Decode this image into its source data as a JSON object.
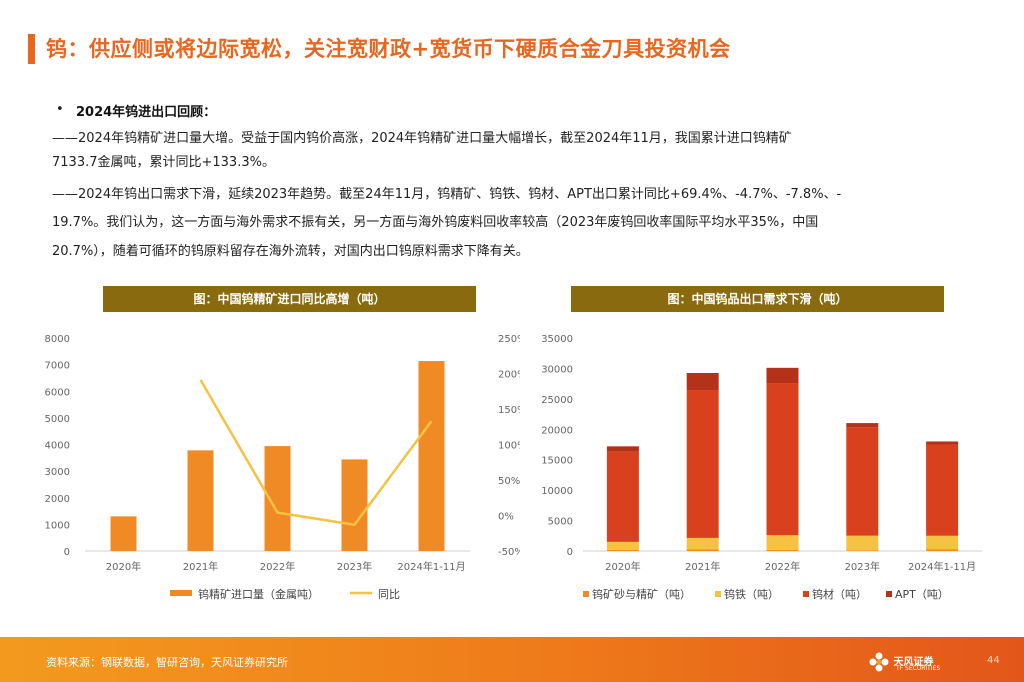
{
  "page": {
    "title": "钨：供应侧或将边际宽松，关注宽财政+宽货币下硬质合金刀具投资机会",
    "bullet_heading": "2024年钨进出口回顾：",
    "para1_line1": "——2024年钨精矿进口量大增。受益于国内钨价高涨，2024年钨精矿进口量大幅增长，截至2024年11月，我国累计进口钨精矿",
    "para1_line2": "7133.7金属吨，累计同比+133.3%。",
    "para2_line1": "——2024年钨出口需求下滑，延续2023年趋势。截至24年11月，钨精矿、钨铁、钨材、APT出口累计同比+69.4%、-4.7%、-7.8%、-",
    "para2_line2": "19.7%。我们认为，这一方面与海外需求不振有关，另一方面与海外钨废料回收率较高（2023年废钨回收率国际平均水平35%，中国",
    "para2_line3": "20.7%），随着可循环的钨原料留存在海外流转，对国内出口钨原料需求下降有关。",
    "footer_source": "资料来源：钢联数据，智研咨询，天风证券研究所",
    "logo_text": "天风证券",
    "logo_sub": "TF SECURITIES",
    "page_number": "44",
    "accent_color": "#e9661e",
    "title_bg_color": "#8a6a0e"
  },
  "chart_data": [
    {
      "type": "bar",
      "title": "图：中国钨精矿进口同比高增（吨）",
      "categories": [
        "2020年",
        "2021年",
        "2022年",
        "2023年",
        "2024年1-11月"
      ],
      "series": [
        {
          "name": "钨精矿进口量（金属吨）",
          "type": "bar",
          "axis": "left",
          "color": "#f08a24",
          "values": [
            1300,
            3780,
            3940,
            3440,
            7134
          ]
        },
        {
          "name": "同比",
          "type": "line",
          "axis": "right",
          "color": "#f5c242",
          "values": [
            null,
            1.91,
            0.04,
            -0.13,
            1.33
          ]
        }
      ],
      "ylim_left": [
        0,
        8000
      ],
      "yticks_left": [
        "0",
        "1000",
        "2000",
        "3000",
        "4000",
        "5000",
        "6000",
        "7000",
        "8000"
      ],
      "ylim_right": [
        -0.5,
        2.5
      ],
      "yticks_right": [
        "-50%",
        "0%",
        "50%",
        "100%",
        "150%",
        "200%",
        "250%"
      ],
      "legend_position": "bottom"
    },
    {
      "type": "bar",
      "stacked": true,
      "title": "图：中国钨品出口需求下滑（吨）",
      "categories": [
        "2020年",
        "2021年",
        "2022年",
        "2023年",
        "2024年1-11月"
      ],
      "series": [
        {
          "name": "钨矿砂与精矿（吨）",
          "color": "#f08a24",
          "values": [
            200,
            250,
            200,
            120,
            300
          ]
        },
        {
          "name": "钨铁（吨）",
          "color": "#f5c242",
          "values": [
            1300,
            1900,
            2400,
            2400,
            2200
          ]
        },
        {
          "name": "钨材（吨）",
          "color": "#d9411e",
          "values": [
            14800,
            24300,
            25000,
            17800,
            15000
          ]
        },
        {
          "name": "APT（吨）",
          "color": "#b5321a",
          "values": [
            900,
            2800,
            2500,
            700,
            500
          ]
        }
      ],
      "ylim": [
        0,
        35000
      ],
      "yticks": [
        "0",
        "5000",
        "10000",
        "15000",
        "20000",
        "25000",
        "30000",
        "35000"
      ],
      "legend_position": "bottom"
    }
  ]
}
